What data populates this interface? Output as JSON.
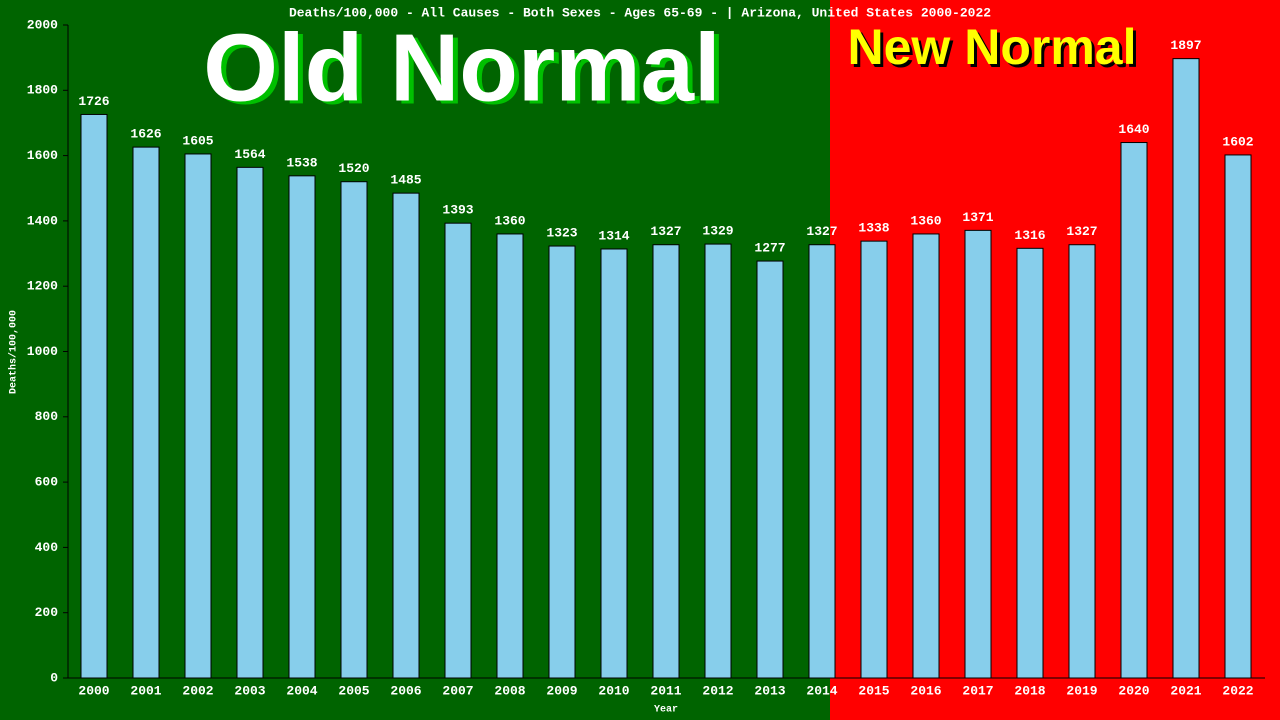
{
  "chart_data": {
    "type": "bar",
    "title": "Deaths/100,000 - All Causes - Both Sexes - Ages 65-69 -  | Arizona, United States 2000-2022",
    "x_label": "Year",
    "y_label": "Deaths/100,000",
    "annotations": [
      "Old Normal",
      "New Normal"
    ],
    "categories": [
      "2000",
      "2001",
      "2002",
      "2003",
      "2004",
      "2005",
      "2006",
      "2007",
      "2008",
      "2009",
      "2010",
      "2011",
      "2012",
      "2013",
      "2014",
      "2015",
      "2016",
      "2017",
      "2018",
      "2019",
      "2020",
      "2021",
      "2022"
    ],
    "values": [
      1726,
      1626,
      1605,
      1564,
      1538,
      1520,
      1485,
      1393,
      1360,
      1323,
      1314,
      1327,
      1329,
      1277,
      1327,
      1338,
      1360,
      1371,
      1316,
      1327,
      1640,
      1897,
      1602
    ],
    "color": "#87ceeb",
    "ylim": [
      0,
      2000
    ],
    "yticks": [
      0,
      200,
      400,
      600,
      800,
      1000,
      1200,
      1400,
      1600,
      1800,
      2000
    ]
  }
}
